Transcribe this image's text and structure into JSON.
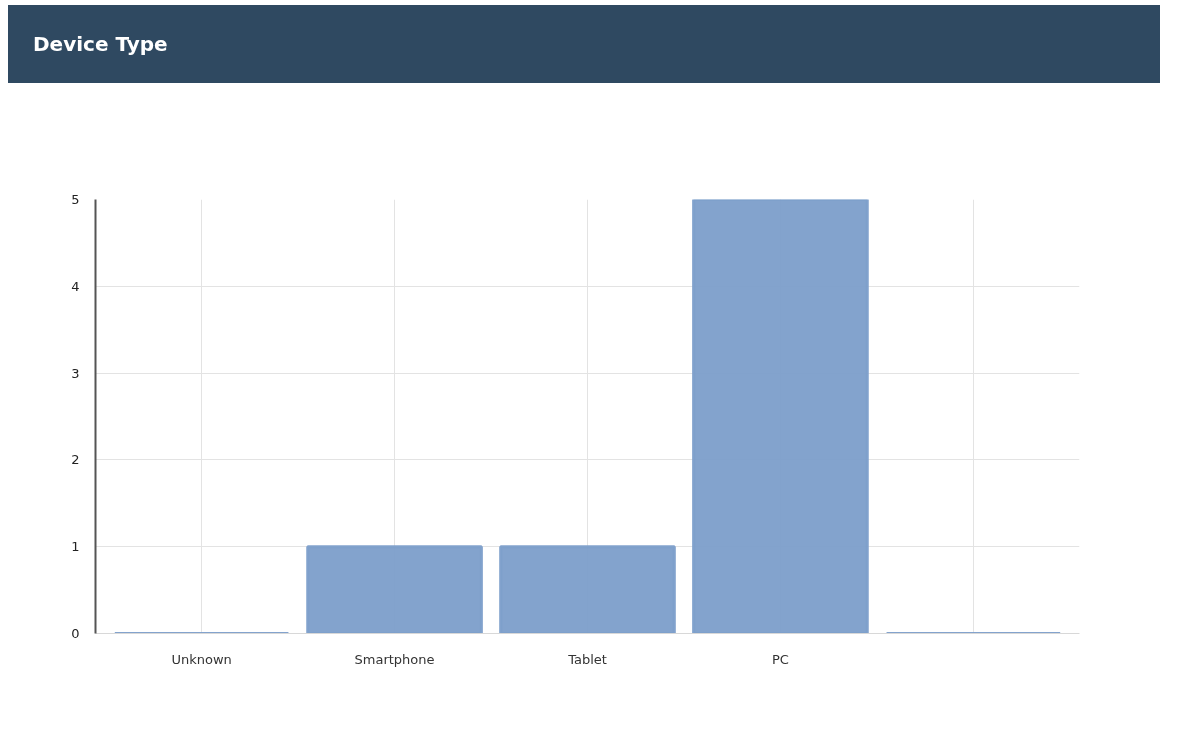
{
  "chart_data": {
    "type": "bar",
    "title": "Device Type",
    "categories": [
      "Unknown",
      "Smartphone",
      "Tablet",
      "PC",
      null
    ],
    "values": [
      0,
      1,
      1,
      5,
      0
    ],
    "color": "#7e9fcb",
    "ylim": [
      0,
      5
    ],
    "yticks": [
      0,
      1,
      2,
      3,
      4,
      5
    ],
    "grid": true
  }
}
